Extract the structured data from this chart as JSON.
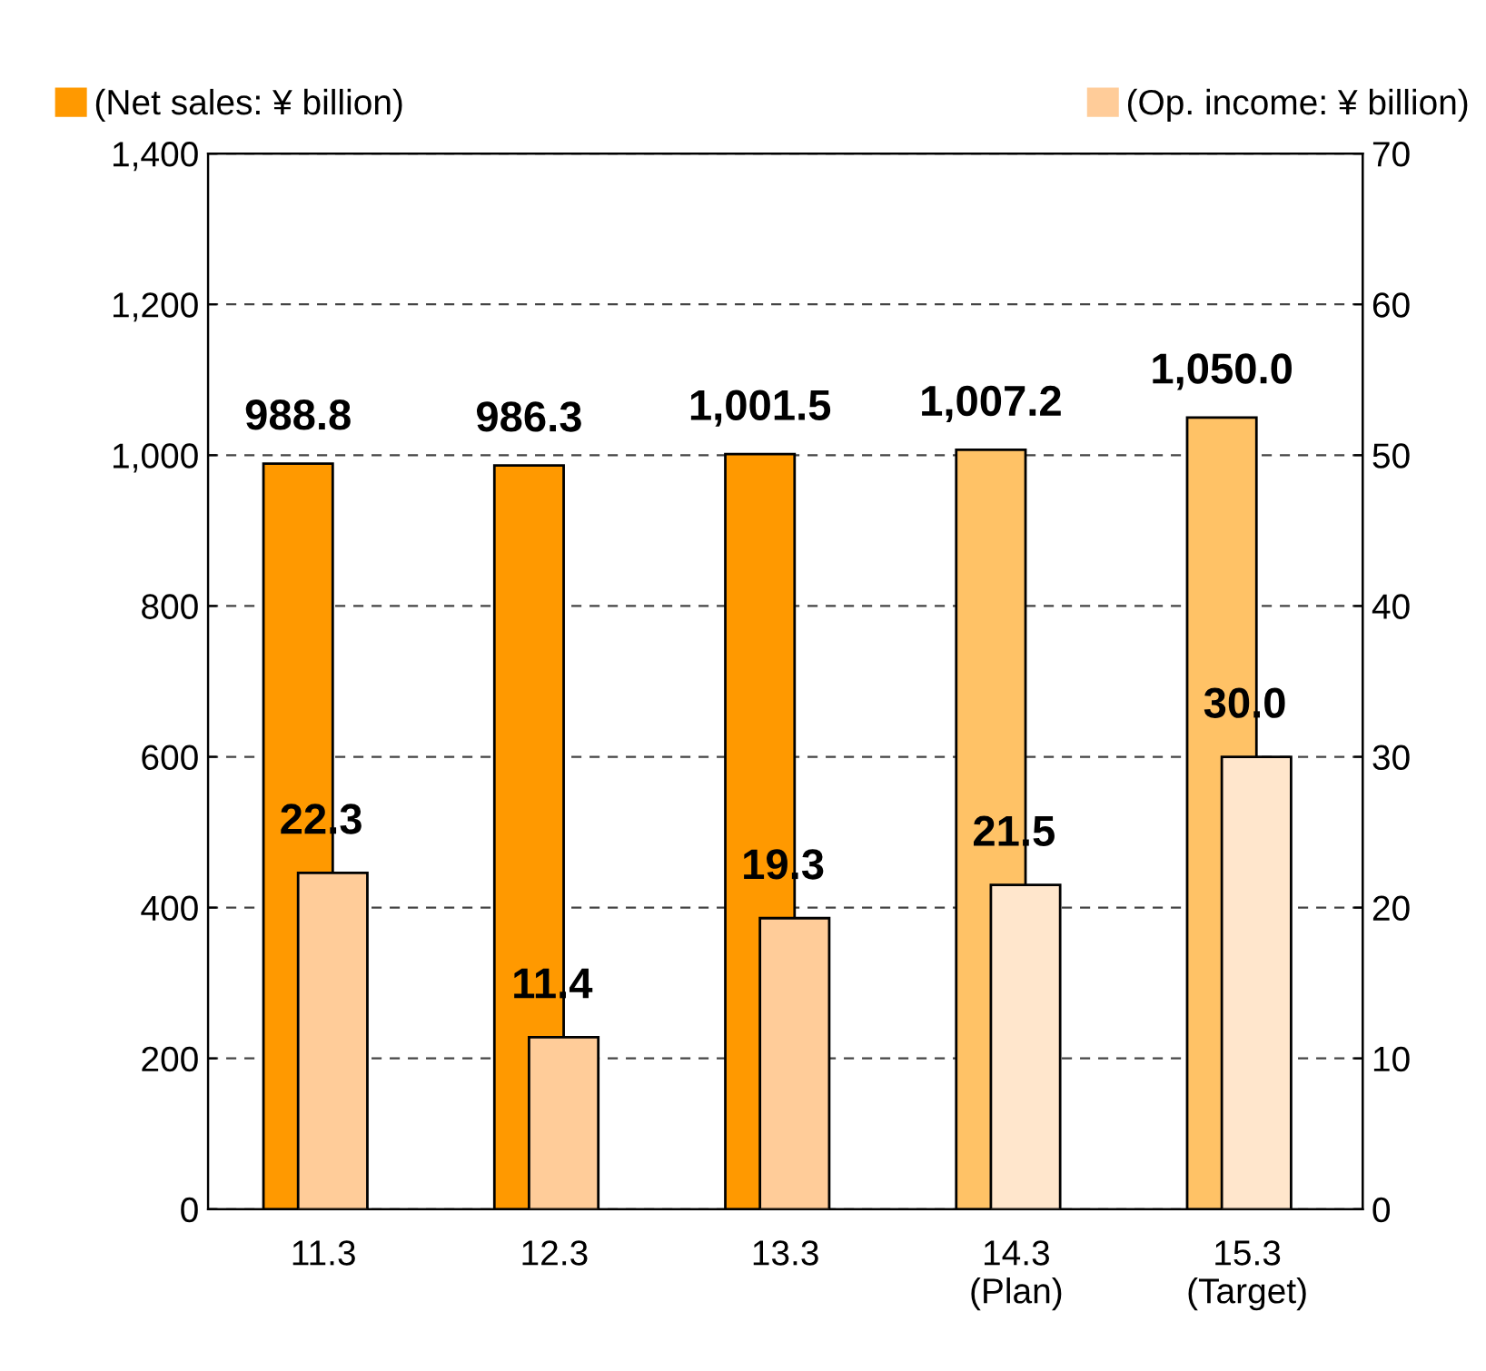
{
  "chart_data": {
    "type": "bar",
    "categories": [
      "11.3",
      "12.3",
      "13.3",
      "14.3\n(Plan)",
      "15.3\n(Target)"
    ],
    "series": [
      {
        "name": "(Net sales: ¥ billion)",
        "color": "#ff9900",
        "colors": [
          "#ff9900",
          "#ff9900",
          "#ff9900",
          "#ffc266",
          "#ffc266"
        ],
        "values": [
          988.8,
          986.3,
          1001.5,
          1007.2,
          1050.0
        ],
        "value_labels": [
          "988.8",
          "986.3",
          "1,001.5",
          "1,007.2",
          "1,050.0"
        ]
      },
      {
        "name": "(Op. income: ¥ billion)",
        "color": "#ffcc99",
        "colors": [
          "#ffcc99",
          "#ffcc99",
          "#ffcc99",
          "#ffe6cc",
          "#ffe6cc"
        ],
        "values": [
          22.3,
          11.4,
          19.3,
          21.5,
          30.0
        ],
        "value_labels": [
          "22.3",
          "11.4",
          "19.3",
          "21.5",
          "30.0"
        ],
        "axis": "y2"
      }
    ],
    "ylim": [
      0,
      1400
    ],
    "yticks": [
      0,
      {
        "value": 200,
        "label": "200"
      },
      {
        "value": 400,
        "label": "400"
      },
      {
        "value": 600,
        "label": "600"
      },
      {
        "value": 800,
        "label": "800"
      },
      {
        "value": 1000,
        "label": "1,000"
      },
      {
        "value": 1200,
        "label": "1,200"
      },
      {
        "value": 1400,
        "label": "1,400"
      }
    ],
    "y2lim": [
      0,
      70
    ],
    "y2ticks": [
      0,
      10,
      20,
      30,
      40,
      50,
      60,
      70
    ],
    "grid": "y",
    "legend": "top"
  }
}
